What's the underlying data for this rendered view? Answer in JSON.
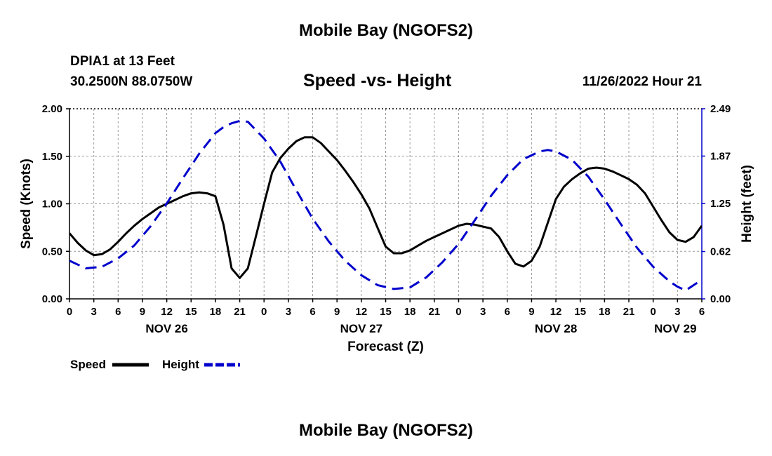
{
  "title": "Mobile Bay (NGOFS2)",
  "footer_title": "Mobile Bay (NGOFS2)",
  "station": {
    "name": "DPIA1 at 13 Feet",
    "coords": "30.2500N  88.0750W"
  },
  "run_time": "11/26/2022 Hour 21",
  "chart_data": {
    "type": "line",
    "title": "Speed -vs- Height",
    "xlabel": "Forecast (Z)",
    "ylabel_left": "Speed (Knots)",
    "ylabel_right": "Height (feet)",
    "x_unit": "hours since Nov 26 00Z",
    "xlim": [
      0,
      78
    ],
    "ylim_left": [
      0,
      2.0
    ],
    "ylim_right": [
      0,
      2.49
    ],
    "grid": true,
    "x_ticks": [
      0,
      3,
      6,
      9,
      12,
      15,
      18,
      21,
      24,
      27,
      30,
      33,
      36,
      39,
      42,
      45,
      48,
      51,
      54,
      57,
      60,
      63,
      66,
      69,
      72,
      75,
      78
    ],
    "x_tick_labels": [
      "0",
      "3",
      "6",
      "9",
      "12",
      "15",
      "18",
      "21",
      "0",
      "3",
      "6",
      "9",
      "12",
      "15",
      "18",
      "21",
      "0",
      "3",
      "6",
      "9",
      "12",
      "15",
      "18",
      "21",
      "0",
      "3",
      "6"
    ],
    "date_labels": [
      {
        "x": 12,
        "label": "NOV 26"
      },
      {
        "x": 36,
        "label": "NOV 27"
      },
      {
        "x": 60,
        "label": "NOV 28"
      },
      {
        "x": 75,
        "label": "NOV 29"
      }
    ],
    "y_left_ticks": [
      "0.00",
      "0.50",
      "1.00",
      "1.50",
      "2.00"
    ],
    "y_left_tick_values": [
      0,
      0.5,
      1.0,
      1.5,
      2.0
    ],
    "y_right_ticks": [
      "0.00",
      "0.62",
      "1.25",
      "1.87",
      "2.49"
    ],
    "y_right_tick_values": [
      0,
      0.62,
      1.25,
      1.87,
      2.49
    ],
    "series": [
      {
        "name": "Speed",
        "axis": "left",
        "color": "#000000",
        "style": "solid",
        "x": [
          0,
          1,
          2,
          3,
          4,
          5,
          6,
          7,
          8,
          9,
          10,
          11,
          12,
          13,
          14,
          15,
          16,
          17,
          18,
          19,
          20,
          21,
          22,
          23,
          24,
          25,
          26,
          27,
          28,
          29,
          30,
          31,
          32,
          33,
          34,
          35,
          36,
          37,
          38,
          39,
          40,
          41,
          42,
          43,
          44,
          45,
          46,
          47,
          48,
          49,
          50,
          51,
          52,
          53,
          54,
          55,
          56,
          57,
          58,
          59,
          60,
          61,
          62,
          63,
          64,
          65,
          66,
          67,
          68,
          69,
          70,
          71,
          72,
          73,
          74,
          75,
          76,
          77,
          78
        ],
        "values": [
          0.69,
          0.59,
          0.51,
          0.46,
          0.47,
          0.52,
          0.6,
          0.69,
          0.77,
          0.84,
          0.9,
          0.96,
          1.0,
          1.04,
          1.08,
          1.11,
          1.12,
          1.11,
          1.08,
          0.78,
          0.32,
          0.22,
          0.32,
          0.66,
          1.0,
          1.33,
          1.48,
          1.58,
          1.66,
          1.7,
          1.7,
          1.64,
          1.55,
          1.46,
          1.35,
          1.23,
          1.1,
          0.95,
          0.75,
          0.55,
          0.48,
          0.48,
          0.51,
          0.56,
          0.61,
          0.65,
          0.69,
          0.73,
          0.77,
          0.79,
          0.78,
          0.76,
          0.74,
          0.65,
          0.5,
          0.37,
          0.34,
          0.4,
          0.55,
          0.8,
          1.05,
          1.18,
          1.26,
          1.32,
          1.37,
          1.38,
          1.37,
          1.34,
          1.3,
          1.26,
          1.2,
          1.11,
          0.97,
          0.83,
          0.7,
          0.62,
          0.6,
          0.65,
          0.77
        ]
      },
      {
        "name": "Height",
        "axis": "right",
        "color": "#0000cc",
        "style": "dashed",
        "x": [
          0,
          2,
          4,
          6,
          8,
          10,
          12,
          14,
          16,
          18,
          19,
          20,
          21,
          22,
          24,
          26,
          28,
          30,
          32,
          34,
          36,
          38,
          40,
          42,
          44,
          46,
          48,
          50,
          52,
          54,
          56,
          58,
          59,
          60,
          62,
          64,
          66,
          68,
          70,
          72,
          74,
          75,
          76,
          78
        ],
        "values": [
          0.5,
          0.4,
          0.42,
          0.53,
          0.7,
          0.95,
          1.25,
          1.58,
          1.9,
          2.17,
          2.25,
          2.3,
          2.33,
          2.32,
          2.1,
          1.8,
          1.42,
          1.05,
          0.75,
          0.5,
          0.31,
          0.18,
          0.13,
          0.15,
          0.28,
          0.48,
          0.72,
          1.03,
          1.35,
          1.62,
          1.83,
          1.93,
          1.95,
          1.93,
          1.82,
          1.6,
          1.3,
          0.98,
          0.67,
          0.42,
          0.23,
          0.16,
          0.11,
          0.25
        ]
      }
    ]
  },
  "legend": {
    "items": [
      {
        "label": "Speed",
        "color": "#000000",
        "style": "solid"
      },
      {
        "label": "Height",
        "color": "#0000cc",
        "style": "dashed"
      }
    ]
  }
}
